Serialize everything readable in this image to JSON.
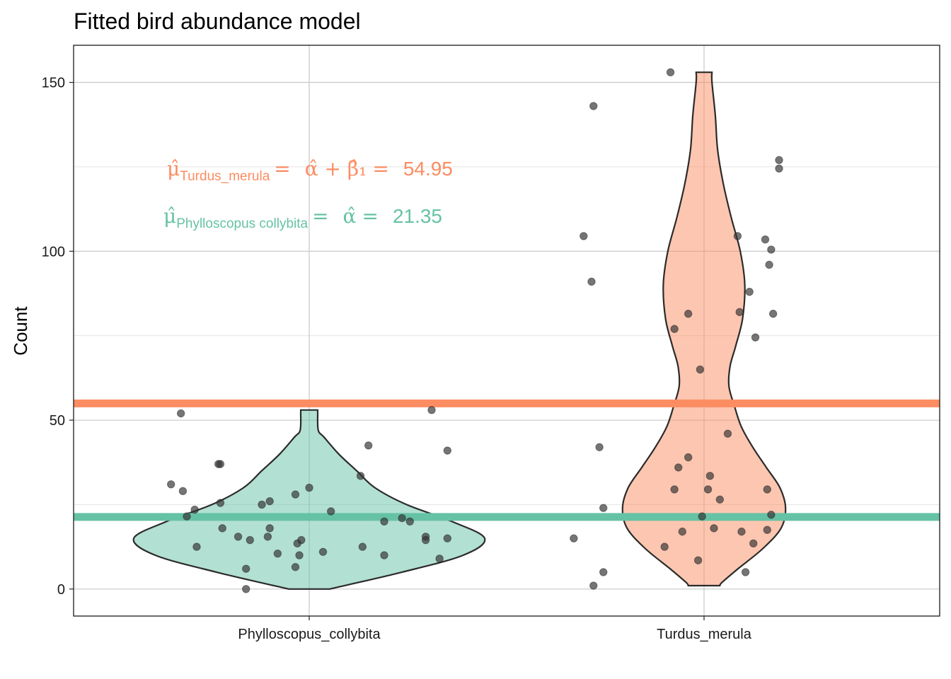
{
  "chart_data": {
    "type": "violin",
    "title": "Fitted bird abundance model",
    "xlabel": "",
    "ylabel": "Count",
    "categories": [
      "Phylloscopus_collybita",
      "Turdus_merula"
    ],
    "ylim": [
      -8,
      161
    ],
    "yticks": [
      0,
      50,
      100,
      150
    ],
    "grid": true,
    "colors": {
      "Phylloscopus_collybita": "#66c2a5",
      "Turdus_merula": "#fc8d62",
      "points": "#333333"
    },
    "reference_lines": [
      {
        "category": "Turdus_merula",
        "value": 54.95
      },
      {
        "category": "Phylloscopus_collybita",
        "value": 21.35
      }
    ],
    "annotations": [
      {
        "category": "Turdus_merula",
        "symbol": "μ̂",
        "subscript": "Turdus_merula",
        "expression": "α̂ + β̂₁",
        "value_label": "54.95"
      },
      {
        "category": "Phylloscopus_collybita",
        "symbol": "μ̂",
        "subscript": "Phylloscopus collybita",
        "expression": "α̂",
        "value_label": "21.35"
      }
    ],
    "series": [
      {
        "name": "Phylloscopus_collybita",
        "violin": {
          "y": [
            0,
            5,
            10,
            15,
            20,
            25,
            30,
            35,
            40,
            45,
            47,
            52,
            53
          ],
          "halfwidth": [
            0.18,
            0.82,
            1.36,
            1.55,
            1.26,
            0.86,
            0.58,
            0.42,
            0.26,
            0.13,
            0.08,
            0.075,
            0.075
          ]
        },
        "points": [
          {
            "jitter": -0.7,
            "y": 31
          },
          {
            "jitter": -0.65,
            "y": 52
          },
          {
            "jitter": -0.64,
            "y": 29
          },
          {
            "jitter": -0.62,
            "y": 21.5
          },
          {
            "jitter": -0.58,
            "y": 23.5
          },
          {
            "jitter": -0.57,
            "y": 12.5
          },
          {
            "jitter": -0.46,
            "y": 37
          },
          {
            "jitter": -0.45,
            "y": 37
          },
          {
            "jitter": -0.45,
            "y": 25.5
          },
          {
            "jitter": -0.44,
            "y": 18
          },
          {
            "jitter": -0.36,
            "y": 15.5
          },
          {
            "jitter": -0.32,
            "y": 6
          },
          {
            "jitter": -0.32,
            "y": 0
          },
          {
            "jitter": -0.3,
            "y": 14.5
          },
          {
            "jitter": -0.24,
            "y": 25
          },
          {
            "jitter": -0.21,
            "y": 15.5
          },
          {
            "jitter": -0.2,
            "y": 26
          },
          {
            "jitter": -0.2,
            "y": 18
          },
          {
            "jitter": -0.16,
            "y": 10.5
          },
          {
            "jitter": -0.07,
            "y": 6.5
          },
          {
            "jitter": -0.07,
            "y": 28
          },
          {
            "jitter": -0.06,
            "y": 13.5
          },
          {
            "jitter": -0.05,
            "y": 10
          },
          {
            "jitter": -0.04,
            "y": 14.5
          },
          {
            "jitter": 0.0,
            "y": 30
          },
          {
            "jitter": 0.07,
            "y": 11
          },
          {
            "jitter": 0.11,
            "y": 23
          },
          {
            "jitter": 0.26,
            "y": 33.5
          },
          {
            "jitter": 0.27,
            "y": 12.5
          },
          {
            "jitter": 0.3,
            "y": 42.5
          },
          {
            "jitter": 0.38,
            "y": 10
          },
          {
            "jitter": 0.38,
            "y": 20
          },
          {
            "jitter": 0.47,
            "y": 21
          },
          {
            "jitter": 0.51,
            "y": 20
          },
          {
            "jitter": 0.59,
            "y": 15.5
          },
          {
            "jitter": 0.59,
            "y": 14.5
          },
          {
            "jitter": 0.62,
            "y": 53
          },
          {
            "jitter": 0.66,
            "y": 9
          },
          {
            "jitter": 0.7,
            "y": 41
          },
          {
            "jitter": 0.7,
            "y": 15
          }
        ]
      },
      {
        "name": "Turdus_merula",
        "violin": {
          "y": [
            1,
            2,
            6,
            12,
            18,
            24,
            30,
            36,
            42,
            48,
            54,
            60,
            66,
            72,
            80,
            90,
            100,
            110,
            120,
            130,
            140,
            150,
            153
          ],
          "halfwidth": [
            0.14,
            0.16,
            0.3,
            0.52,
            0.68,
            0.72,
            0.67,
            0.55,
            0.43,
            0.33,
            0.27,
            0.22,
            0.23,
            0.28,
            0.34,
            0.36,
            0.32,
            0.24,
            0.17,
            0.12,
            0.1,
            0.07,
            0.07
          ]
        },
        "points": [
          {
            "jitter": -0.56,
            "y": 143
          },
          {
            "jitter": -0.56,
            "y": 1
          },
          {
            "jitter": -0.61,
            "y": 104.5
          },
          {
            "jitter": -0.57,
            "y": 91
          },
          {
            "jitter": -0.66,
            "y": 15
          },
          {
            "jitter": -0.53,
            "y": 42
          },
          {
            "jitter": -0.51,
            "y": 24
          },
          {
            "jitter": -0.51,
            "y": 5
          },
          {
            "jitter": -0.17,
            "y": 153
          },
          {
            "jitter": -0.15,
            "y": 77
          },
          {
            "jitter": -0.15,
            "y": 29.5
          },
          {
            "jitter": -0.2,
            "y": 12.5
          },
          {
            "jitter": -0.13,
            "y": 36
          },
          {
            "jitter": -0.11,
            "y": 17
          },
          {
            "jitter": -0.08,
            "y": 39
          },
          {
            "jitter": -0.08,
            "y": 81.5
          },
          {
            "jitter": -0.03,
            "y": 8.5
          },
          {
            "jitter": -0.02,
            "y": 65
          },
          {
            "jitter": -0.01,
            "y": 21.5
          },
          {
            "jitter": 0.02,
            "y": 29.5
          },
          {
            "jitter": 0.03,
            "y": 33.5
          },
          {
            "jitter": 0.05,
            "y": 18
          },
          {
            "jitter": 0.08,
            "y": 26.5
          },
          {
            "jitter": 0.12,
            "y": 46
          },
          {
            "jitter": 0.17,
            "y": 104.5
          },
          {
            "jitter": 0.18,
            "y": 82
          },
          {
            "jitter": 0.19,
            "y": 17
          },
          {
            "jitter": 0.21,
            "y": 5
          },
          {
            "jitter": 0.23,
            "y": 88
          },
          {
            "jitter": 0.25,
            "y": 13.5
          },
          {
            "jitter": 0.26,
            "y": 74.5
          },
          {
            "jitter": 0.31,
            "y": 103.5
          },
          {
            "jitter": 0.32,
            "y": 29.5
          },
          {
            "jitter": 0.32,
            "y": 17.5
          },
          {
            "jitter": 0.33,
            "y": 96
          },
          {
            "jitter": 0.34,
            "y": 22
          },
          {
            "jitter": 0.34,
            "y": 100.5
          },
          {
            "jitter": 0.35,
            "y": 81.5
          },
          {
            "jitter": 0.38,
            "y": 124.5
          },
          {
            "jitter": 0.38,
            "y": 127
          }
        ]
      }
    ]
  }
}
